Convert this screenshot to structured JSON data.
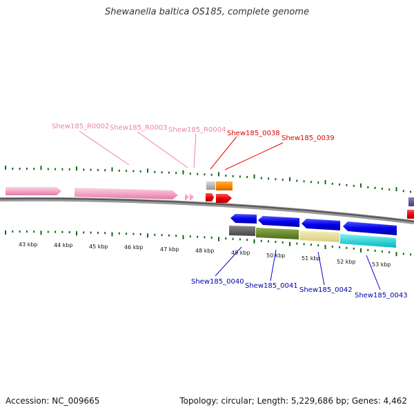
{
  "header": {
    "title": "Shewanella baltica OS185, complete genome"
  },
  "footer": {
    "accession": "Accession: NC_009665",
    "topology": "Topology: circular; Length: 5,229,686 bp; Genes: 4,462"
  },
  "colors": {
    "rna_pink": "#f4a6c8",
    "rna_label": "#f080b0",
    "gene_red": "#ee0000",
    "gene_orange": "#ff8c00",
    "gene_blue": "#0000ee",
    "backbone": "#666666",
    "tick_green": "#116611"
  },
  "tick_labels": [
    "43 kbp",
    "44 kbp",
    "45 kbp",
    "46 kbp",
    "47 kbp",
    "48 kbp",
    "49 kbp",
    "50 kbp",
    "51 kbp",
    "52 kbp",
    "53 kbp"
  ],
  "features": {
    "forward_rna": [
      "Shew185_R0002",
      "Shew185_R0003",
      "Shew185_R0004"
    ],
    "forward_genes": [
      "Shew185_0038",
      "Shew185_0039"
    ],
    "reverse_genes": [
      "Shew185_0040",
      "Shew185_0041",
      "Shew185_0042",
      "Shew185_0043"
    ]
  }
}
